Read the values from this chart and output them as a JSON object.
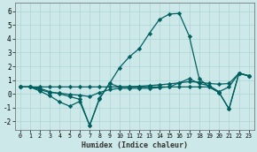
{
  "xlabel": "Humidex (Indice chaleur)",
  "xlim": [
    -0.5,
    23.5
  ],
  "ylim": [
    -2.6,
    6.6
  ],
  "xticks": [
    0,
    1,
    2,
    3,
    4,
    5,
    6,
    7,
    8,
    9,
    10,
    11,
    12,
    13,
    14,
    15,
    16,
    17,
    18,
    19,
    20,
    21,
    22,
    23
  ],
  "yticks": [
    -2,
    -1,
    0,
    1,
    2,
    3,
    4,
    5,
    6
  ],
  "background_color": "#cce8e8",
  "grid_color": "#aad4d4",
  "line_color": "#006060",
  "series": [
    [
      0.5,
      0.5,
      0.2,
      -0.15,
      -0.6,
      -0.9,
      -0.55,
      -2.3,
      -0.3,
      0.75,
      0.5,
      0.5,
      0.5,
      0.5,
      0.5,
      0.5,
      0.5,
      0.5,
      0.5,
      0.5,
      0.1,
      -1.1,
      1.5,
      1.3
    ],
    [
      0.5,
      0.5,
      0.3,
      0.1,
      0.05,
      -0.05,
      -0.1,
      -0.2,
      0.1,
      0.3,
      0.4,
      0.4,
      0.4,
      0.4,
      0.45,
      0.5,
      0.8,
      1.1,
      0.75,
      0.6,
      0.15,
      0.5,
      1.5,
      1.3
    ],
    [
      0.5,
      0.5,
      0.5,
      0.5,
      0.5,
      0.5,
      0.5,
      0.5,
      0.5,
      0.5,
      0.5,
      0.52,
      0.55,
      0.6,
      0.65,
      0.72,
      0.8,
      0.88,
      0.85,
      0.75,
      0.7,
      0.75,
      1.5,
      1.3
    ],
    [
      0.5,
      0.5,
      0.4,
      0.15,
      0.0,
      -0.2,
      -0.4,
      -2.3,
      -0.35,
      0.75,
      1.9,
      2.7,
      3.3,
      4.4,
      5.4,
      5.8,
      5.85,
      4.2,
      1.1,
      0.5,
      0.1,
      -1.1,
      1.5,
      1.3
    ]
  ]
}
